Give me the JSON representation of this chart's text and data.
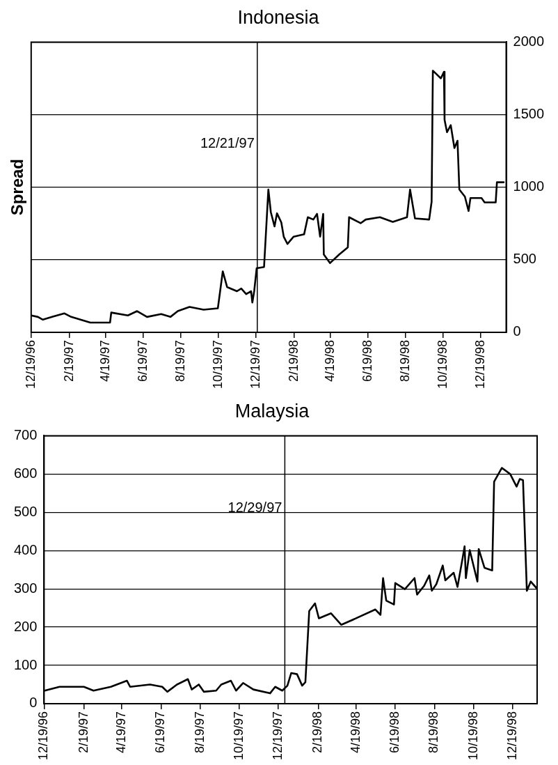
{
  "chart_data": [
    {
      "type": "line",
      "title": "Indonesia",
      "ylabel": "Spread",
      "grid": "y",
      "legend": false,
      "marker": "none",
      "line_style": "solid",
      "xlim": [
        "1996-12-19",
        "1999-01-29"
      ],
      "xticks": [
        {
          "value": "1996-12-19",
          "label": "12/19/96"
        },
        {
          "value": "1997-02-19",
          "label": "2/19/97"
        },
        {
          "value": "1997-04-19",
          "label": "4/19/97"
        },
        {
          "value": "1997-06-19",
          "label": "6/19/97"
        },
        {
          "value": "1997-08-19",
          "label": "8/19/97"
        },
        {
          "value": "1997-10-19",
          "label": "10/19/97"
        },
        {
          "value": "1997-12-19",
          "label": "12/19/97"
        },
        {
          "value": "1998-02-19",
          "label": "2/19/98"
        },
        {
          "value": "1998-04-19",
          "label": "4/19/98"
        },
        {
          "value": "1998-06-19",
          "label": "6/19/98"
        },
        {
          "value": "1998-08-19",
          "label": "8/19/98"
        },
        {
          "value": "1998-10-19",
          "label": "10/19/98"
        },
        {
          "value": "1998-12-19",
          "label": "12/19/98"
        }
      ],
      "y2lim": [
        0,
        2000
      ],
      "y2ticks": [
        0,
        500,
        1000,
        1500,
        2000
      ],
      "ref_lines": [
        {
          "axis": "x",
          "value": "1997-12-21",
          "label": "12/21/97",
          "color": "#000000"
        }
      ],
      "series": [
        {
          "color": "#000000",
          "axis": "y2",
          "x": [
            "1996-12-19",
            "1996-12-30",
            "1997-01-07",
            "1997-01-22",
            "1997-02-11",
            "1997-02-22",
            "1997-03-09",
            "1997-03-25",
            "1997-04-26",
            "1997-04-28",
            "1997-05-25",
            "1997-06-09",
            "1997-06-25",
            "1997-07-18",
            "1997-08-02",
            "1997-08-14",
            "1997-09-02",
            "1997-09-25",
            "1997-10-18",
            "1997-10-26",
            "1997-11-02",
            "1997-11-18",
            "1997-11-25",
            "1997-12-03",
            "1997-12-11",
            "1997-12-13",
            "1997-12-16",
            "1997-12-20",
            "1998-01-01",
            "1998-01-08",
            "1998-01-12",
            "1998-01-18",
            "1998-01-22",
            "1998-01-29",
            "1998-02-02",
            "1998-02-08",
            "1998-02-18",
            "1998-03-07",
            "1998-03-13",
            "1998-03-22",
            "1998-03-28",
            "1998-04-02",
            "1998-04-07",
            "1998-04-08",
            "1998-04-18",
            "1998-05-03",
            "1998-05-17",
            "1998-05-19",
            "1998-06-07",
            "1998-06-15",
            "1998-07-08",
            "1998-07-29",
            "1998-08-21",
            "1998-08-26",
            "1998-09-03",
            "1998-09-26",
            "1998-09-30",
            "1998-10-02",
            "1998-10-15",
            "1998-10-20",
            "1998-10-21",
            "1998-10-25",
            "1998-10-31",
            "1998-11-06",
            "1998-11-11",
            "1998-11-14",
            "1998-11-23",
            "1998-11-29",
            "1998-12-02",
            "1998-12-20",
            "1998-12-25",
            "1999-01-12",
            "1999-01-14",
            "1999-01-25"
          ],
          "values": [
            116,
            106,
            87,
            106,
            130,
            106,
            87,
            67,
            67,
            136,
            116,
            146,
            106,
            126,
            106,
            146,
            175,
            156,
            165,
            420,
            312,
            283,
            302,
            263,
            283,
            205,
            283,
            441,
            450,
            984,
            828,
            730,
            820,
            757,
            658,
            609,
            659,
            675,
            793,
            777,
            816,
            659,
            816,
            536,
            477,
            536,
            586,
            793,
            752,
            777,
            793,
            761,
            793,
            984,
            785,
            777,
            900,
            1803,
            1750,
            1795,
            1464,
            1379,
            1428,
            1270,
            1320,
            984,
            935,
            836,
            925,
            925,
            895,
            895,
            1034,
            1034
          ]
        }
      ]
    },
    {
      "type": "line",
      "title": "Malaysia",
      "grid": "y",
      "legend": false,
      "marker": "none",
      "line_style": "solid",
      "xlim": [
        "1996-12-19",
        "1999-01-26"
      ],
      "xticks": [
        {
          "value": "1996-12-19",
          "label": "12/19/96"
        },
        {
          "value": "1997-02-19",
          "label": "2/19/97"
        },
        {
          "value": "1997-04-19",
          "label": "4/19/97"
        },
        {
          "value": "1997-06-19",
          "label": "6/19/97"
        },
        {
          "value": "1997-08-19",
          "label": "8/19/97"
        },
        {
          "value": "1997-10-19",
          "label": "10/19/97"
        },
        {
          "value": "1997-12-19",
          "label": "12/19/97"
        },
        {
          "value": "1998-02-19",
          "label": "2/19/98"
        },
        {
          "value": "1998-04-19",
          "label": "4/19/98"
        },
        {
          "value": "1998-06-19",
          "label": "6/19/98"
        },
        {
          "value": "1998-08-19",
          "label": "8/19/98"
        },
        {
          "value": "1998-10-19",
          "label": "10/19/98"
        },
        {
          "value": "1998-12-19",
          "label": "12/19/98"
        }
      ],
      "ylim": [
        0,
        700
      ],
      "yticks": [
        0,
        100,
        200,
        300,
        400,
        500,
        600,
        700
      ],
      "ref_lines": [
        {
          "axis": "x",
          "value": "1997-12-29",
          "label": "12/29/97",
          "color": "#000000"
        }
      ],
      "series": [
        {
          "color": "#000000",
          "x": [
            "1996-12-20",
            "1997-01-12",
            "1997-02-19",
            "1997-03-06",
            "1997-04-02",
            "1997-04-27",
            "1997-05-02",
            "1997-06-02",
            "1997-06-21",
            "1997-06-29",
            "1997-07-14",
            "1997-07-31",
            "1997-08-06",
            "1997-08-17",
            "1997-08-25",
            "1997-09-13",
            "1997-09-21",
            "1997-10-06",
            "1997-10-14",
            "1997-10-25",
            "1997-11-10",
            "1997-12-06",
            "1997-12-14",
            "1997-12-25",
            "1998-01-02",
            "1998-01-08",
            "1998-01-17",
            "1998-01-25",
            "1998-01-30",
            "1998-02-05",
            "1998-02-14",
            "1998-02-20",
            "1998-03-11",
            "1998-03-27",
            "1998-04-19",
            "1998-05-19",
            "1998-05-27",
            "1998-05-31",
            "1998-06-05",
            "1998-06-17",
            "1998-06-19",
            "1998-07-04",
            "1998-07-19",
            "1998-07-23",
            "1998-08-03",
            "1998-08-11",
            "1998-08-15",
            "1998-08-22",
            "1998-09-01",
            "1998-09-05",
            "1998-09-18",
            "1998-09-24",
            "1998-10-02",
            "1998-10-05",
            "1998-10-07",
            "1998-10-13",
            "1998-10-25",
            "1998-10-27",
            "1998-11-05",
            "1998-11-17",
            "1998-11-20",
            "1998-12-02",
            "1998-12-15",
            "1998-12-25",
            "1998-12-30",
            "1999-01-04",
            "1999-01-10",
            "1999-01-16",
            "1999-01-25"
          ],
          "values": [
            34,
            44,
            44,
            34,
            44,
            60,
            44,
            50,
            44,
            31,
            50,
            64,
            37,
            50,
            31,
            34,
            50,
            60,
            34,
            54,
            37,
            27,
            44,
            34,
            47,
            80,
            77,
            47,
            56,
            242,
            262,
            223,
            236,
            206,
            223,
            246,
            232,
            328,
            269,
            259,
            315,
            299,
            328,
            285,
            308,
            335,
            295,
            312,
            361,
            322,
            342,
            305,
            381,
            411,
            328,
            401,
            319,
            404,
            355,
            348,
            580,
            616,
            600,
            567,
            587,
            584,
            295,
            319,
            302
          ]
        }
      ]
    }
  ]
}
